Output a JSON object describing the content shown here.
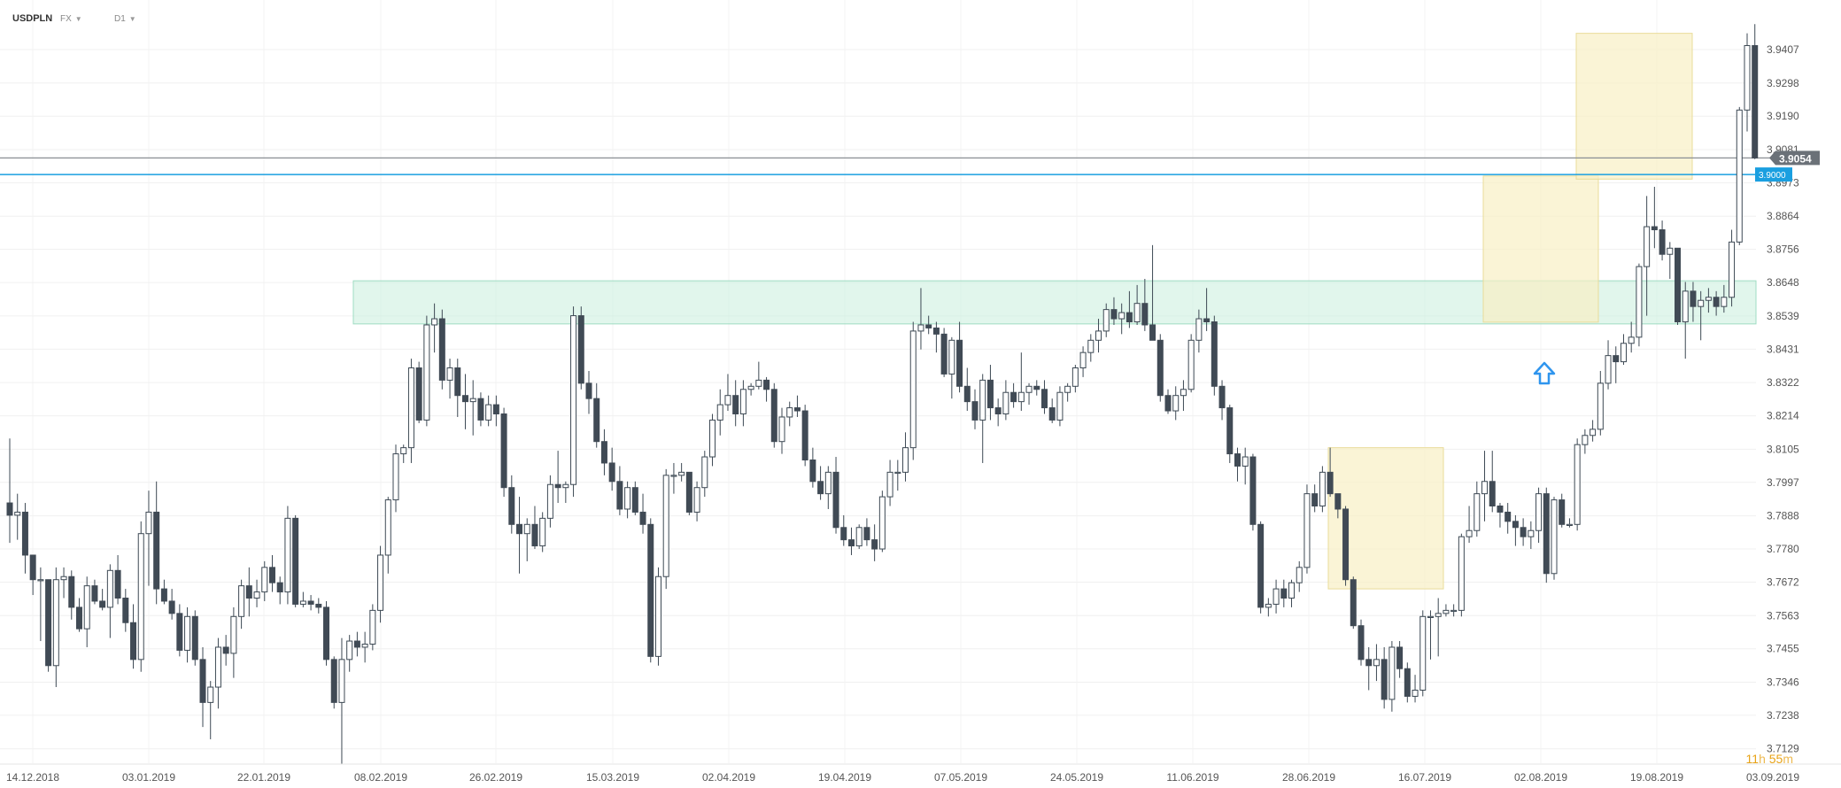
{
  "header": {
    "symbol": "USDPLN",
    "market": "FX",
    "timeframe": "D1"
  },
  "timer": {
    "hours": "11",
    "h_unit": "h",
    "minutes": "55",
    "m_unit": "m"
  },
  "chart_data": {
    "type": "candlestick",
    "title": "",
    "xlabel": "",
    "ylabel": "",
    "ylim": [
      3.702,
      3.95
    ],
    "y_ticks": [
      "3.9407",
      "3.9298",
      "3.9190",
      "3.9081",
      "3.8973",
      "3.8864",
      "3.8756",
      "3.8648",
      "3.8539",
      "3.8431",
      "3.8322",
      "3.8214",
      "3.8105",
      "3.7997",
      "3.7888",
      "3.7780",
      "3.7672",
      "3.7563",
      "3.7455",
      "3.7346",
      "3.7238",
      "3.7129"
    ],
    "x_ticks": [
      "14.12.2018",
      "03.01.2019",
      "22.01.2019",
      "08.02.2019",
      "26.02.2019",
      "15.03.2019",
      "02.04.2019",
      "19.04.2019",
      "07.05.2019",
      "24.05.2019",
      "11.06.2019",
      "28.06.2019",
      "16.07.2019",
      "02.08.2019",
      "19.08.2019",
      "03.09.2019"
    ],
    "current_price": "3.9054",
    "level_label": "3.9000",
    "grid": true,
    "colors": {
      "up_fill": "#ffffff",
      "up_border": "#3d4954",
      "down_fill": "#404a55",
      "wick": "#3d4954",
      "current_line": "#8a8f94",
      "level_line": "#1a9fe0",
      "zone_green": "#c8efdd",
      "zone_yellow": "#f8f0c4",
      "arrow": "#2f95ee",
      "price_tag": "#6b7178"
    },
    "candles": [
      [
        3.793,
        3.814,
        3.78,
        3.789
      ],
      [
        3.789,
        3.796,
        3.781,
        3.79
      ],
      [
        3.79,
        3.793,
        3.77,
        3.776
      ],
      [
        3.776,
        3.776,
        3.763,
        3.768
      ],
      [
        3.768,
        3.772,
        3.748,
        3.768
      ],
      [
        3.768,
        3.768,
        3.738,
        3.74
      ],
      [
        3.74,
        3.772,
        3.733,
        3.768
      ],
      [
        3.768,
        3.772,
        3.762,
        3.769
      ],
      [
        3.769,
        3.771,
        3.755,
        3.759
      ],
      [
        3.759,
        3.762,
        3.751,
        3.752
      ],
      [
        3.752,
        3.769,
        3.746,
        3.766
      ],
      [
        3.766,
        3.768,
        3.76,
        3.761
      ],
      [
        3.761,
        3.765,
        3.758,
        3.759
      ],
      [
        3.759,
        3.773,
        3.749,
        3.771
      ],
      [
        3.771,
        3.776,
        3.76,
        3.762
      ],
      [
        3.762,
        3.765,
        3.751,
        3.754
      ],
      [
        3.754,
        3.76,
        3.739,
        3.742
      ],
      [
        3.742,
        3.787,
        3.738,
        3.783
      ],
      [
        3.783,
        3.797,
        3.766,
        3.79
      ],
      [
        3.79,
        3.8,
        3.76,
        3.765
      ],
      [
        3.765,
        3.768,
        3.76,
        3.761
      ],
      [
        3.761,
        3.765,
        3.755,
        3.757
      ],
      [
        3.757,
        3.76,
        3.743,
        3.745
      ],
      [
        3.745,
        3.759,
        3.741,
        3.756
      ],
      [
        3.756,
        3.758,
        3.74,
        3.742
      ],
      [
        3.742,
        3.746,
        3.72,
        3.728
      ],
      [
        3.728,
        3.735,
        3.716,
        3.733
      ],
      [
        3.733,
        3.749,
        3.726,
        3.746
      ],
      [
        3.746,
        3.75,
        3.74,
        3.744
      ],
      [
        3.744,
        3.759,
        3.736,
        3.756
      ],
      [
        3.756,
        3.768,
        3.752,
        3.766
      ],
      [
        3.766,
        3.772,
        3.756,
        3.762
      ],
      [
        3.762,
        3.768,
        3.759,
        3.764
      ],
      [
        3.764,
        3.774,
        3.761,
        3.772
      ],
      [
        3.772,
        3.776,
        3.764,
        3.767
      ],
      [
        3.767,
        3.769,
        3.76,
        3.764
      ],
      [
        3.764,
        3.792,
        3.76,
        3.788
      ],
      [
        3.788,
        3.789,
        3.759,
        3.76
      ],
      [
        3.76,
        3.764,
        3.759,
        3.761
      ],
      [
        3.761,
        3.763,
        3.758,
        3.76
      ],
      [
        3.76,
        3.762,
        3.757,
        3.759
      ],
      [
        3.759,
        3.761,
        3.74,
        3.742
      ],
      [
        3.742,
        3.743,
        3.726,
        3.728
      ],
      [
        3.728,
        3.749,
        3.708,
        3.742
      ],
      [
        3.742,
        3.75,
        3.738,
        3.748
      ],
      [
        3.748,
        3.751,
        3.743,
        3.746
      ],
      [
        3.746,
        3.751,
        3.741,
        3.747
      ],
      [
        3.747,
        3.76,
        3.745,
        3.758
      ],
      [
        3.758,
        3.779,
        3.754,
        3.776
      ],
      [
        3.776,
        3.795,
        3.77,
        3.794
      ],
      [
        3.794,
        3.812,
        3.79,
        3.809
      ],
      [
        3.809,
        3.812,
        3.806,
        3.811
      ],
      [
        3.811,
        3.84,
        3.806,
        3.837
      ],
      [
        3.837,
        3.839,
        3.819,
        3.82
      ],
      [
        3.82,
        3.854,
        3.818,
        3.851
      ],
      [
        3.851,
        3.858,
        3.842,
        3.853
      ],
      [
        3.853,
        3.856,
        3.83,
        3.833
      ],
      [
        3.833,
        3.84,
        3.827,
        3.837
      ],
      [
        3.837,
        3.84,
        3.821,
        3.828
      ],
      [
        3.828,
        3.835,
        3.817,
        3.826
      ],
      [
        3.826,
        3.833,
        3.815,
        3.827
      ],
      [
        3.827,
        3.829,
        3.818,
        3.82
      ],
      [
        3.82,
        3.828,
        3.818,
        3.825
      ],
      [
        3.825,
        3.828,
        3.818,
        3.822
      ],
      [
        3.822,
        3.824,
        3.795,
        3.798
      ],
      [
        3.798,
        3.802,
        3.783,
        3.786
      ],
      [
        3.786,
        3.795,
        3.77,
        3.783
      ],
      [
        3.783,
        3.788,
        3.774,
        3.786
      ],
      [
        3.786,
        3.792,
        3.778,
        3.779
      ],
      [
        3.779,
        3.79,
        3.777,
        3.788
      ],
      [
        3.788,
        3.802,
        3.785,
        3.799
      ],
      [
        3.799,
        3.81,
        3.793,
        3.798
      ],
      [
        3.798,
        3.8,
        3.793,
        3.799
      ],
      [
        3.799,
        3.857,
        3.795,
        3.854
      ],
      [
        3.854,
        3.857,
        3.83,
        3.832
      ],
      [
        3.832,
        3.836,
        3.822,
        3.827
      ],
      [
        3.827,
        3.832,
        3.811,
        3.813
      ],
      [
        3.813,
        3.817,
        3.802,
        3.806
      ],
      [
        3.806,
        3.811,
        3.797,
        3.8
      ],
      [
        3.8,
        3.805,
        3.789,
        3.791
      ],
      [
        3.791,
        3.8,
        3.788,
        3.798
      ],
      [
        3.798,
        3.8,
        3.789,
        3.79
      ],
      [
        3.79,
        3.796,
        3.783,
        3.786
      ],
      [
        3.786,
        3.788,
        3.741,
        3.743
      ],
      [
        3.743,
        3.772,
        3.74,
        3.769
      ],
      [
        3.769,
        3.804,
        3.765,
        3.802
      ],
      [
        3.802,
        3.806,
        3.796,
        3.802
      ],
      [
        3.802,
        3.806,
        3.8,
        3.803
      ],
      [
        3.803,
        3.803,
        3.789,
        3.79
      ],
      [
        3.79,
        3.8,
        3.787,
        3.798
      ],
      [
        3.798,
        3.81,
        3.795,
        3.808
      ],
      [
        3.808,
        3.822,
        3.805,
        3.82
      ],
      [
        3.82,
        3.83,
        3.815,
        3.825
      ],
      [
        3.825,
        3.835,
        3.823,
        3.828
      ],
      [
        3.828,
        3.833,
        3.818,
        3.822
      ],
      [
        3.822,
        3.833,
        3.818,
        3.83
      ],
      [
        3.83,
        3.832,
        3.828,
        3.831
      ],
      [
        3.831,
        3.839,
        3.83,
        3.833
      ],
      [
        3.833,
        3.834,
        3.826,
        3.83
      ],
      [
        3.83,
        3.832,
        3.811,
        3.813
      ],
      [
        3.813,
        3.824,
        3.809,
        3.821
      ],
      [
        3.821,
        3.826,
        3.818,
        3.824
      ],
      [
        3.824,
        3.828,
        3.821,
        3.823
      ],
      [
        3.823,
        3.825,
        3.805,
        3.807
      ],
      [
        3.807,
        3.811,
        3.798,
        3.8
      ],
      [
        3.8,
        3.805,
        3.794,
        3.796
      ],
      [
        3.796,
        3.805,
        3.791,
        3.803
      ],
      [
        3.803,
        3.808,
        3.783,
        3.785
      ],
      [
        3.785,
        3.789,
        3.779,
        3.781
      ],
      [
        3.781,
        3.785,
        3.776,
        3.779
      ],
      [
        3.779,
        3.786,
        3.778,
        3.785
      ],
      [
        3.785,
        3.788,
        3.779,
        3.781
      ],
      [
        3.781,
        3.786,
        3.774,
        3.778
      ],
      [
        3.778,
        3.797,
        3.777,
        3.795
      ],
      [
        3.795,
        3.807,
        3.792,
        3.803
      ],
      [
        3.803,
        3.807,
        3.797,
        3.803
      ],
      [
        3.803,
        3.816,
        3.8,
        3.811
      ],
      [
        3.811,
        3.852,
        3.807,
        3.849
      ],
      [
        3.849,
        3.863,
        3.843,
        3.851
      ],
      [
        3.851,
        3.854,
        3.848,
        3.85
      ],
      [
        3.85,
        3.852,
        3.842,
        3.848
      ],
      [
        3.848,
        3.85,
        3.834,
        3.835
      ],
      [
        3.835,
        3.847,
        3.827,
        3.846
      ],
      [
        3.846,
        3.852,
        3.829,
        3.831
      ],
      [
        3.831,
        3.837,
        3.823,
        3.826
      ],
      [
        3.826,
        3.83,
        3.817,
        3.82
      ],
      [
        3.82,
        3.835,
        3.806,
        3.833
      ],
      [
        3.833,
        3.838,
        3.82,
        3.824
      ],
      [
        3.824,
        3.827,
        3.818,
        3.822
      ],
      [
        3.822,
        3.833,
        3.82,
        3.829
      ],
      [
        3.829,
        3.832,
        3.824,
        3.826
      ],
      [
        3.826,
        3.842,
        3.823,
        3.829
      ],
      [
        3.829,
        3.832,
        3.825,
        3.831
      ],
      [
        3.831,
        3.833,
        3.828,
        3.83
      ],
      [
        3.83,
        3.833,
        3.822,
        3.824
      ],
      [
        3.824,
        3.827,
        3.819,
        3.82
      ],
      [
        3.82,
        3.831,
        3.818,
        3.829
      ],
      [
        3.829,
        3.832,
        3.826,
        3.831
      ],
      [
        3.831,
        3.838,
        3.829,
        3.837
      ],
      [
        3.837,
        3.844,
        3.834,
        3.842
      ],
      [
        3.842,
        3.848,
        3.839,
        3.846
      ],
      [
        3.846,
        3.853,
        3.842,
        3.849
      ],
      [
        3.849,
        3.858,
        3.847,
        3.856
      ],
      [
        3.856,
        3.86,
        3.851,
        3.853
      ],
      [
        3.853,
        3.858,
        3.848,
        3.855
      ],
      [
        3.855,
        3.862,
        3.85,
        3.852
      ],
      [
        3.852,
        3.864,
        3.851,
        3.858
      ],
      [
        3.858,
        3.866,
        3.849,
        3.851
      ],
      [
        3.851,
        3.877,
        3.846,
        3.846
      ],
      [
        3.846,
        3.848,
        3.826,
        3.828
      ],
      [
        3.828,
        3.83,
        3.822,
        3.823
      ],
      [
        3.823,
        3.831,
        3.82,
        3.828
      ],
      [
        3.828,
        3.833,
        3.823,
        3.83
      ],
      [
        3.83,
        3.848,
        3.829,
        3.846
      ],
      [
        3.846,
        3.856,
        3.842,
        3.853
      ],
      [
        3.853,
        3.863,
        3.849,
        3.852
      ],
      [
        3.852,
        3.854,
        3.828,
        3.831
      ],
      [
        3.831,
        3.833,
        3.82,
        3.824
      ],
      [
        3.824,
        3.825,
        3.806,
        3.809
      ],
      [
        3.809,
        3.811,
        3.8,
        3.805
      ],
      [
        3.805,
        3.811,
        3.799,
        3.808
      ],
      [
        3.808,
        3.809,
        3.784,
        3.786
      ],
      [
        3.786,
        3.787,
        3.757,
        3.759
      ],
      [
        3.759,
        3.762,
        3.756,
        3.76
      ],
      [
        3.76,
        3.768,
        3.757,
        3.765
      ],
      [
        3.765,
        3.768,
        3.759,
        3.762
      ],
      [
        3.762,
        3.768,
        3.759,
        3.767
      ],
      [
        3.767,
        3.774,
        3.764,
        3.772
      ],
      [
        3.772,
        3.799,
        3.77,
        3.796
      ],
      [
        3.796,
        3.799,
        3.79,
        3.792
      ],
      [
        3.792,
        3.805,
        3.79,
        3.803
      ],
      [
        3.803,
        3.811,
        3.795,
        3.796
      ],
      [
        3.796,
        3.796,
        3.788,
        3.791
      ],
      [
        3.791,
        3.792,
        3.766,
        3.768
      ],
      [
        3.768,
        3.769,
        3.752,
        3.753
      ],
      [
        3.753,
        3.755,
        3.74,
        3.742
      ],
      [
        3.742,
        3.746,
        3.732,
        3.74
      ],
      [
        3.74,
        3.747,
        3.735,
        3.742
      ],
      [
        3.742,
        3.746,
        3.726,
        3.729
      ],
      [
        3.729,
        3.748,
        3.725,
        3.746
      ],
      [
        3.746,
        3.748,
        3.736,
        3.739
      ],
      [
        3.739,
        3.741,
        3.728,
        3.73
      ],
      [
        3.73,
        3.737,
        3.728,
        3.732
      ],
      [
        3.732,
        3.758,
        3.73,
        3.756
      ],
      [
        3.756,
        3.758,
        3.742,
        3.756
      ],
      [
        3.756,
        3.762,
        3.743,
        3.757
      ],
      [
        3.757,
        3.76,
        3.756,
        3.758
      ],
      [
        3.758,
        3.76,
        3.756,
        3.758
      ],
      [
        3.758,
        3.783,
        3.756,
        3.782
      ],
      [
        3.782,
        3.792,
        3.78,
        3.784
      ],
      [
        3.784,
        3.8,
        3.782,
        3.796
      ],
      [
        3.796,
        3.81,
        3.787,
        3.8
      ],
      [
        3.8,
        3.81,
        3.79,
        3.792
      ],
      [
        3.792,
        3.793,
        3.785,
        3.79
      ],
      [
        3.79,
        3.793,
        3.783,
        3.787
      ],
      [
        3.787,
        3.789,
        3.779,
        3.785
      ],
      [
        3.785,
        3.788,
        3.779,
        3.782
      ],
      [
        3.782,
        3.787,
        3.778,
        3.784
      ],
      [
        3.784,
        3.798,
        3.78,
        3.796
      ],
      [
        3.796,
        3.798,
        3.767,
        3.77
      ],
      [
        3.77,
        3.795,
        3.768,
        3.794
      ],
      [
        3.794,
        3.796,
        3.785,
        3.786
      ],
      [
        3.786,
        3.788,
        3.785,
        3.786
      ],
      [
        3.786,
        3.814,
        3.784,
        3.812
      ],
      [
        3.812,
        3.817,
        3.809,
        3.815
      ],
      [
        3.815,
        3.82,
        3.813,
        3.817
      ],
      [
        3.817,
        3.836,
        3.815,
        3.832
      ],
      [
        3.832,
        3.846,
        3.83,
        3.841
      ],
      [
        3.841,
        3.844,
        3.832,
        3.839
      ],
      [
        3.839,
        3.848,
        3.838,
        3.845
      ],
      [
        3.845,
        3.852,
        3.842,
        3.847
      ],
      [
        3.847,
        3.871,
        3.844,
        3.87
      ],
      [
        3.87,
        3.893,
        3.854,
        3.883
      ],
      [
        3.883,
        3.896,
        3.876,
        3.882
      ],
      [
        3.882,
        3.885,
        3.872,
        3.874
      ],
      [
        3.874,
        3.878,
        3.866,
        3.876
      ],
      [
        3.876,
        3.876,
        3.851,
        3.852
      ],
      [
        3.852,
        3.865,
        3.84,
        3.862
      ],
      [
        3.862,
        3.865,
        3.852,
        3.857
      ],
      [
        3.857,
        3.862,
        3.846,
        3.859
      ],
      [
        3.859,
        3.863,
        3.855,
        3.86
      ],
      [
        3.86,
        3.862,
        3.854,
        3.857
      ],
      [
        3.857,
        3.864,
        3.855,
        3.86
      ],
      [
        3.86,
        3.882,
        3.857,
        3.878
      ],
      [
        3.878,
        3.922,
        3.877,
        3.921
      ],
      [
        3.921,
        3.946,
        3.914,
        3.942
      ],
      [
        3.942,
        3.949,
        3.905,
        3.9054
      ]
    ]
  }
}
